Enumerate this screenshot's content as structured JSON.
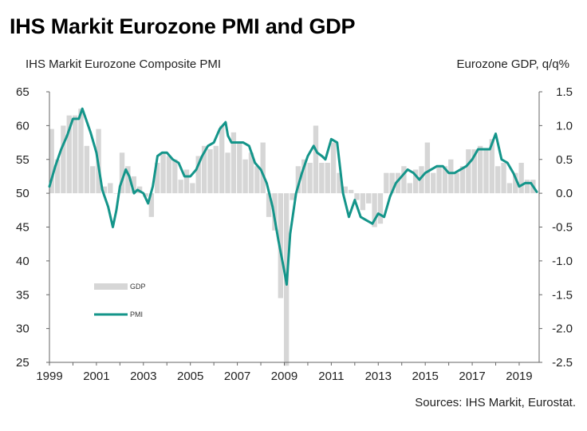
{
  "title": "IHS Markit Eurozone PMI and GDP",
  "left_axis_title": "IHS Markit Eurozone Composite PMI",
  "right_axis_title": "Eurozone GDP, q/q%",
  "source": "Sources: IHS Markit, Eurostat.",
  "colors": {
    "gdp": "#d6d6d6",
    "pmi": "#14958a"
  },
  "chart_data": {
    "type": "bar+line",
    "title": "IHS Markit Eurozone PMI and GDP",
    "ylabel_left": "IHS Markit Eurozone Composite PMI",
    "ylabel_right": "Eurozone GDP, q/q%",
    "ylim_left": [
      25,
      65
    ],
    "ylim_right": [
      -2.5,
      1.5
    ],
    "xlim": [
      1999.0,
      2019.85
    ],
    "x_tick_labels": [
      "1999",
      "2001",
      "2003",
      "2005",
      "2007",
      "2009",
      "2011",
      "2013",
      "2015",
      "2017",
      "2019"
    ],
    "left_tick_labels": [
      "65",
      "60",
      "55",
      "50",
      "45",
      "40",
      "35",
      "30",
      "25"
    ],
    "right_tick_labels": [
      "1.5",
      "1.0",
      "0.5",
      "0.0",
      "-0.5",
      "-1.0",
      "-1.5",
      "-2.0",
      "-2.5"
    ],
    "legend": [
      "GDP",
      "PMI"
    ],
    "gdp": {
      "name": "GDP",
      "x": [
        1999.0,
        1999.25,
        1999.5,
        1999.75,
        2000.0,
        2000.25,
        2000.5,
        2000.75,
        2001.0,
        2001.25,
        2001.5,
        2001.75,
        2002.0,
        2002.25,
        2002.5,
        2002.75,
        2003.0,
        2003.25,
        2003.5,
        2003.75,
        2004.0,
        2004.25,
        2004.5,
        2004.75,
        2005.0,
        2005.25,
        2005.5,
        2005.75,
        2006.0,
        2006.25,
        2006.5,
        2006.75,
        2007.0,
        2007.25,
        2007.5,
        2007.75,
        2008.0,
        2008.25,
        2008.5,
        2008.75,
        2009.0,
        2009.25,
        2009.5,
        2009.75,
        2010.0,
        2010.25,
        2010.5,
        2010.75,
        2011.0,
        2011.25,
        2011.5,
        2011.75,
        2012.0,
        2012.25,
        2012.5,
        2012.75,
        2013.0,
        2013.25,
        2013.5,
        2013.75,
        2014.0,
        2014.25,
        2014.5,
        2014.75,
        2015.0,
        2015.25,
        2015.5,
        2015.75,
        2016.0,
        2016.25,
        2016.5,
        2016.75,
        2017.0,
        2017.25,
        2017.5,
        2017.75,
        2018.0,
        2018.25,
        2018.5,
        2018.75,
        2019.0,
        2019.25,
        2019.5
      ],
      "values": [
        0.95,
        0.5,
        1.0,
        1.15,
        1.15,
        1.25,
        0.7,
        0.4,
        0.95,
        0.1,
        0.15,
        0.0,
        0.6,
        0.4,
        0.25,
        0.1,
        -0.05,
        -0.35,
        0.45,
        0.6,
        0.55,
        0.5,
        0.2,
        0.35,
        0.15,
        0.55,
        0.7,
        0.65,
        0.7,
        1.0,
        0.6,
        0.9,
        0.75,
        0.5,
        0.6,
        0.4,
        0.75,
        -0.35,
        -0.55,
        -1.55,
        -2.55,
        -0.1,
        0.4,
        0.5,
        0.45,
        1.0,
        0.45,
        0.45,
        0.75,
        0.3,
        0.1,
        0.05,
        -0.1,
        -0.25,
        -0.15,
        -0.5,
        -0.45,
        0.3,
        0.3,
        0.3,
        0.4,
        0.15,
        0.35,
        0.4,
        0.75,
        0.3,
        0.4,
        0.4,
        0.5,
        0.3,
        0.4,
        0.65,
        0.65,
        0.7,
        0.65,
        0.8,
        0.4,
        0.45,
        0.15,
        0.3,
        0.45,
        0.2,
        0.2
      ]
    },
    "pmi": {
      "name": "PMI",
      "x": [
        1999.0,
        1999.25,
        1999.5,
        1999.75,
        2000.0,
        2000.25,
        2000.4,
        2000.6,
        2000.75,
        2001.0,
        2001.25,
        2001.5,
        2001.7,
        2001.85,
        2002.0,
        2002.25,
        2002.4,
        2002.6,
        2002.75,
        2003.0,
        2003.2,
        2003.4,
        2003.6,
        2003.8,
        2004.0,
        2004.25,
        2004.5,
        2004.75,
        2005.0,
        2005.25,
        2005.5,
        2005.75,
        2006.0,
        2006.25,
        2006.5,
        2006.6,
        2006.75,
        2007.0,
        2007.25,
        2007.5,
        2007.75,
        2008.0,
        2008.25,
        2008.5,
        2008.75,
        2009.0,
        2009.1,
        2009.25,
        2009.5,
        2009.75,
        2010.0,
        2010.25,
        2010.4,
        2010.6,
        2010.75,
        2011.0,
        2011.25,
        2011.5,
        2011.75,
        2012.0,
        2012.25,
        2012.5,
        2012.75,
        2013.0,
        2013.25,
        2013.5,
        2013.75,
        2014.0,
        2014.25,
        2014.5,
        2014.75,
        2015.0,
        2015.25,
        2015.5,
        2015.75,
        2016.0,
        2016.25,
        2016.5,
        2016.75,
        2017.0,
        2017.25,
        2017.5,
        2017.75,
        2018.0,
        2018.25,
        2018.5,
        2018.75,
        2019.0,
        2019.25,
        2019.5,
        2019.75
      ],
      "values": [
        51.0,
        54.0,
        56.5,
        58.5,
        61.0,
        61.0,
        62.5,
        60.5,
        59.0,
        56.0,
        50.5,
        48.0,
        45.0,
        47.5,
        51.0,
        53.5,
        52.5,
        50.0,
        50.5,
        50.0,
        48.5,
        51.0,
        55.5,
        56.0,
        56.0,
        55.0,
        54.5,
        52.5,
        52.5,
        53.5,
        55.5,
        57.0,
        57.5,
        59.5,
        60.5,
        58.5,
        57.5,
        57.5,
        57.5,
        57.0,
        54.5,
        53.5,
        51.5,
        48.0,
        43.0,
        38.5,
        36.5,
        44.0,
        50.0,
        53.0,
        55.5,
        57.0,
        56.0,
        55.5,
        55.0,
        58.0,
        57.5,
        50.0,
        46.5,
        49.0,
        46.5,
        46.0,
        45.5,
        47.0,
        46.5,
        49.5,
        51.5,
        52.5,
        53.5,
        53.0,
        52.0,
        53.0,
        53.5,
        54.0,
        54.0,
        53.0,
        53.0,
        53.5,
        54.0,
        55.0,
        56.5,
        56.5,
        56.5,
        58.8,
        55.0,
        54.5,
        53.0,
        51.0,
        51.5,
        51.5,
        50.2
      ]
    }
  }
}
